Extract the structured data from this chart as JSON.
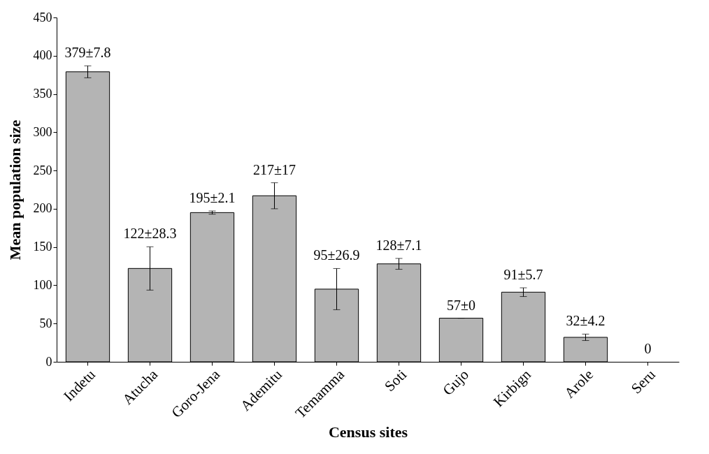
{
  "chart_data": {
    "type": "bar",
    "xlabel": "Census sites",
    "ylabel": "Mean population size",
    "categories": [
      "Indetu",
      "Atucha",
      "Goro-Jena",
      "Ademitu",
      "Temamma",
      "Soti",
      "Gujo",
      "Kirbign",
      "Arole",
      "Seru"
    ],
    "values": [
      379,
      122,
      195,
      217,
      95,
      128,
      57,
      91,
      32,
      0
    ],
    "errors": [
      7.8,
      28.3,
      2.1,
      17,
      26.9,
      7.1,
      0,
      5.7,
      4.2,
      null
    ],
    "value_labels": [
      "379±7.8",
      "122±28.3",
      "195±2.1",
      "217±17",
      "95±26.9",
      "128±7.1",
      "57±0",
      "91±5.7",
      "32±4.2",
      "0"
    ],
    "color": "#b4b4b4",
    "ylim": [
      0,
      450
    ],
    "yticks": [
      0,
      50,
      100,
      150,
      200,
      250,
      300,
      350,
      400,
      450
    ],
    "grid": false
  }
}
